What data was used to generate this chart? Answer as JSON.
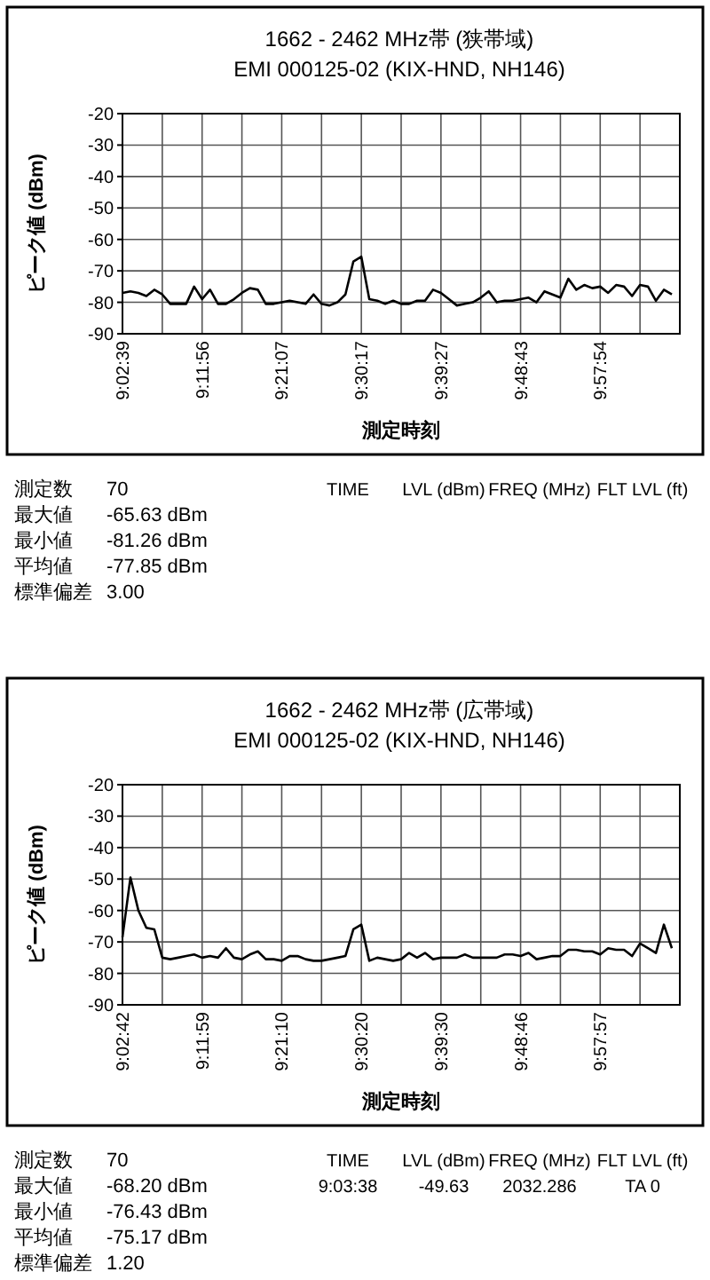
{
  "chart_data": [
    {
      "type": "line",
      "title": "1662 - 2462 MHz帯 (狭帯域)",
      "subtitle": "EMI 000125-02 (KIX-HND, NH146)",
      "xlabel": "測定時刻",
      "ylabel": "ピーク値 (dBm)",
      "categories": [
        "9:02:39",
        null,
        null,
        null,
        null,
        null,
        null,
        null,
        null,
        null,
        "9:11:56",
        null,
        null,
        null,
        null,
        null,
        null,
        null,
        null,
        null,
        "9:21:07",
        null,
        null,
        null,
        null,
        null,
        null,
        null,
        null,
        null,
        "9:30:17",
        null,
        null,
        null,
        null,
        null,
        null,
        null,
        null,
        null,
        "9:39:27",
        null,
        null,
        null,
        null,
        null,
        null,
        null,
        null,
        null,
        "9:48:43",
        null,
        null,
        null,
        null,
        null,
        null,
        null,
        null,
        null,
        "9:57:54",
        null,
        null,
        null,
        null,
        null,
        null,
        null,
        null,
        null
      ],
      "series": [
        {
          "color": "#000000",
          "values": [
            -77,
            -76.5,
            -77,
            -78,
            -76,
            -77.5,
            -80.5,
            -80.5,
            -80.5,
            -75,
            -79,
            -76,
            -80.5,
            -80.5,
            -79,
            -77,
            -75.5,
            -76,
            -80.5,
            -80.5,
            -80,
            -79.5,
            -80,
            -80.5,
            -77.5,
            -80.5,
            -81,
            -80,
            -77.5,
            -67,
            -65.5,
            -79,
            -79.5,
            -80.5,
            -79.5,
            -80.5,
            -80.5,
            -79.5,
            -79.5,
            -76,
            -77,
            -79,
            -81,
            -80.5,
            -80,
            -78.5,
            -76.5,
            -80,
            -79.5,
            -79.5,
            -79,
            -78.5,
            -80,
            -76.5,
            -77.5,
            -78.5,
            -72.5,
            -76,
            -74.5,
            -75.5,
            -75,
            -77,
            -74.5,
            -75,
            -78,
            -74.5,
            -75,
            -79.5,
            -76,
            -77.5
          ]
        }
      ],
      "ylim": [
        -90,
        -20
      ],
      "yticks": [
        -20,
        -30,
        -40,
        -50,
        -60,
        -70,
        -80,
        -90
      ],
      "grid": true,
      "marker": "none",
      "line_style": "solid",
      "annotations": [
        "測定数",
        "70",
        "最大値",
        "-65.63 dBm",
        "最小値",
        "-81.26 dBm",
        "平均値",
        "-77.85 dBm",
        "標準偏差",
        "3.00",
        "TIME",
        "LVL (dBm)",
        "FREQ (MHz)",
        "FLT LVL (ft)"
      ]
    },
    {
      "type": "line",
      "title": "1662 - 2462 MHz帯 (広帯域)",
      "subtitle": "EMI 000125-02 (KIX-HND, NH146)",
      "xlabel": "測定時刻",
      "ylabel": "ピーク値 (dBm)",
      "categories": [
        "9:02:42",
        null,
        null,
        null,
        null,
        null,
        null,
        null,
        null,
        null,
        "9:11:59",
        null,
        null,
        null,
        null,
        null,
        null,
        null,
        null,
        null,
        "9:21:10",
        null,
        null,
        null,
        null,
        null,
        null,
        null,
        null,
        null,
        "9:30:20",
        null,
        null,
        null,
        null,
        null,
        null,
        null,
        null,
        null,
        "9:39:30",
        null,
        null,
        null,
        null,
        null,
        null,
        null,
        null,
        null,
        "9:48:46",
        null,
        null,
        null,
        null,
        null,
        null,
        null,
        null,
        null,
        "9:57:57",
        null,
        null,
        null,
        null,
        null,
        null,
        null,
        null,
        null
      ],
      "series": [
        {
          "color": "#000000",
          "values": [
            -68.5,
            -49.5,
            -60,
            -65.5,
            -66,
            -75,
            -75.5,
            -75,
            -74.5,
            -74,
            -75,
            -74.5,
            -75,
            -72,
            -75,
            -75.5,
            -74,
            -73,
            -75.5,
            -75.5,
            -76,
            -74.5,
            -74.5,
            -75.5,
            -76,
            -76,
            -75.5,
            -75,
            -74.5,
            -66,
            -64.5,
            -76,
            -75,
            -75.5,
            -76,
            -75.5,
            -73.5,
            -75,
            -73.5,
            -75.5,
            -75,
            -75,
            -75,
            -74,
            -75,
            -75,
            -75,
            -75,
            -74,
            -74,
            -74.5,
            -73.5,
            -75.5,
            -75,
            -74.5,
            -74.5,
            -72.5,
            -72.5,
            -73,
            -73,
            -74,
            -72,
            -72.5,
            -72.5,
            -74.5,
            -70.5,
            -72,
            -73.5,
            -64.5,
            -72
          ]
        }
      ],
      "ylim": [
        -90,
        -20
      ],
      "yticks": [
        -20,
        -30,
        -40,
        -50,
        -60,
        -70,
        -80,
        -90
      ],
      "grid": true,
      "marker": "none",
      "line_style": "solid",
      "annotations": [
        "測定数",
        "70",
        "最大値",
        "-68.20 dBm",
        "最小値",
        "-76.43 dBm",
        "平均値",
        "-75.17 dBm",
        "標準偏差",
        "1.20",
        "TIME",
        "LVL (dBm)",
        "FREQ (MHz)",
        "FLT LVL (ft)",
        "9:03:38",
        "-49.63",
        "2032.286",
        "TA 0"
      ]
    }
  ]
}
